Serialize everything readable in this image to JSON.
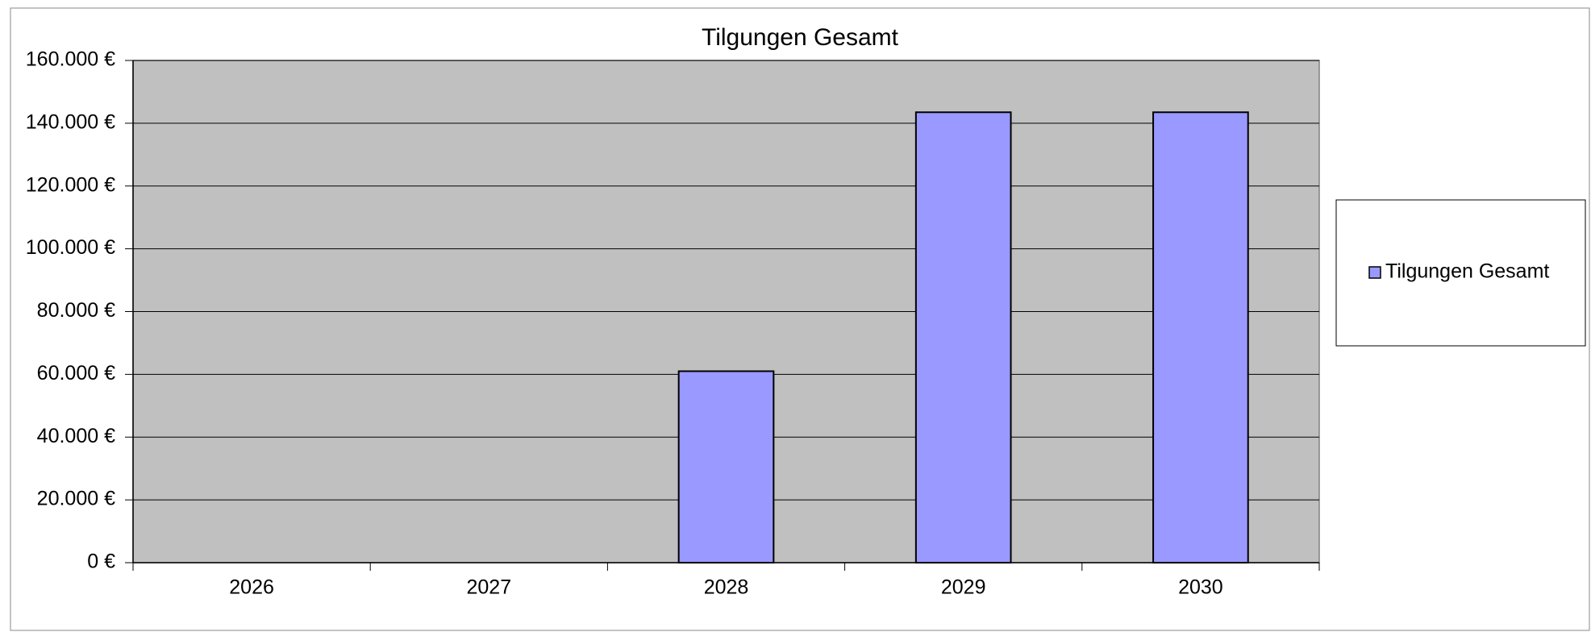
{
  "chart_data": {
    "type": "bar",
    "title": "Tilgungen Gesamt",
    "categories": [
      "2026",
      "2027",
      "2028",
      "2029",
      "2030"
    ],
    "series": [
      {
        "name": "Tilgungen Gesamt",
        "color": "#9999ff",
        "values": [
          0,
          0,
          61000,
          143500,
          143500
        ]
      }
    ],
    "ylim": [
      0,
      160000
    ],
    "yticks": [
      {
        "value": 0,
        "label": "0 €"
      },
      {
        "value": 20000,
        "label": "20.000 €"
      },
      {
        "value": 40000,
        "label": "40.000 €"
      },
      {
        "value": 60000,
        "label": "60.000 €"
      },
      {
        "value": 80000,
        "label": "80.000 €"
      },
      {
        "value": 100000,
        "label": "100.000 €"
      },
      {
        "value": 120000,
        "label": "120.000 €"
      },
      {
        "value": 140000,
        "label": "140.000 €"
      },
      {
        "value": 160000,
        "label": "160.000 €"
      }
    ],
    "grid": true,
    "legend": "right"
  }
}
